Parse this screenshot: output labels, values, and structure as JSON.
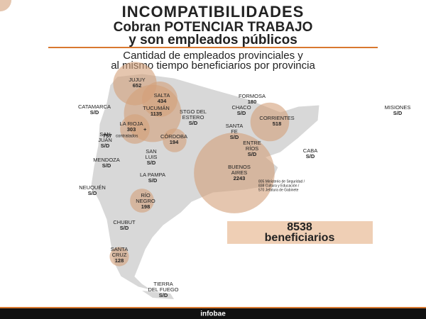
{
  "header": {
    "title": "INCOMPATIBILIDADES",
    "subtitle": [
      "Cobran POTENCIAR TRABAJO",
      "y son empleados públicos"
    ],
    "description": [
      "Cantidad de empleados provinciales y",
      "al mismo tiempo beneficiarios por provincia"
    ]
  },
  "provinces": [
    {
      "name": [
        "JUJUY"
      ],
      "value": 652
    },
    {
      "name": [
        "SALTA"
      ],
      "value": 434
    },
    {
      "name": [
        "TUCUMÁN"
      ],
      "value": 1135
    },
    {
      "name": [
        "FORMOSA"
      ],
      "value": 180
    },
    {
      "name": [
        "CATAMARCA"
      ],
      "value": "S/D"
    },
    {
      "name": [
        "CHACO"
      ],
      "value": "S/D"
    },
    {
      "name": [
        "MISIONES"
      ],
      "value": "S/D"
    },
    {
      "name": [
        "STGO DEL",
        "ESTERO"
      ],
      "value": "S/D"
    },
    {
      "name": [
        "CORRIENTES"
      ],
      "value": 518
    },
    {
      "name": [
        "LA RIOJA"
      ],
      "value": 303,
      "extra": "+",
      "note": [
        "757",
        "contratados"
      ]
    },
    {
      "name": [
        "SANTA",
        "FE"
      ],
      "value": "S/D"
    },
    {
      "name": [
        "SAN",
        "JUAN"
      ],
      "value": "S/D"
    },
    {
      "name": [
        "CÓRDOBA"
      ],
      "value": 194
    },
    {
      "name": [
        "ENTRE",
        "RÍOS"
      ],
      "value": "S/D"
    },
    {
      "name": [
        "CABA"
      ],
      "value": "S/D"
    },
    {
      "name": [
        "SAN",
        "LUIS"
      ],
      "value": "S/D"
    },
    {
      "name": [
        "MENDOZA"
      ],
      "value": "S/D"
    },
    {
      "name": [
        "BUENOS",
        "AIRES"
      ],
      "value": 2243,
      "note": [
        "805 Ministerio de Seguridad /",
        "838 Cultura y Educación /",
        "570 Jefatura de Gabinete"
      ]
    },
    {
      "name": [
        "LA PAMPA"
      ],
      "value": "S/D"
    },
    {
      "name": [
        "NEUQUÉN"
      ],
      "value": "S/D"
    },
    {
      "name": [
        "RÍO",
        "NEGRO"
      ],
      "value": 198
    },
    {
      "name": [
        "CHUBUT"
      ],
      "value": "S/D"
    },
    {
      "name": [
        "SANTA",
        "CRUZ"
      ],
      "value": 128
    },
    {
      "name": [
        "TIERRA",
        "DEL FUEGO"
      ],
      "value": "S/D"
    }
  ],
  "total": {
    "value": 8538,
    "label": "beneficiarios"
  },
  "footer": {
    "brand": "infobae"
  }
}
